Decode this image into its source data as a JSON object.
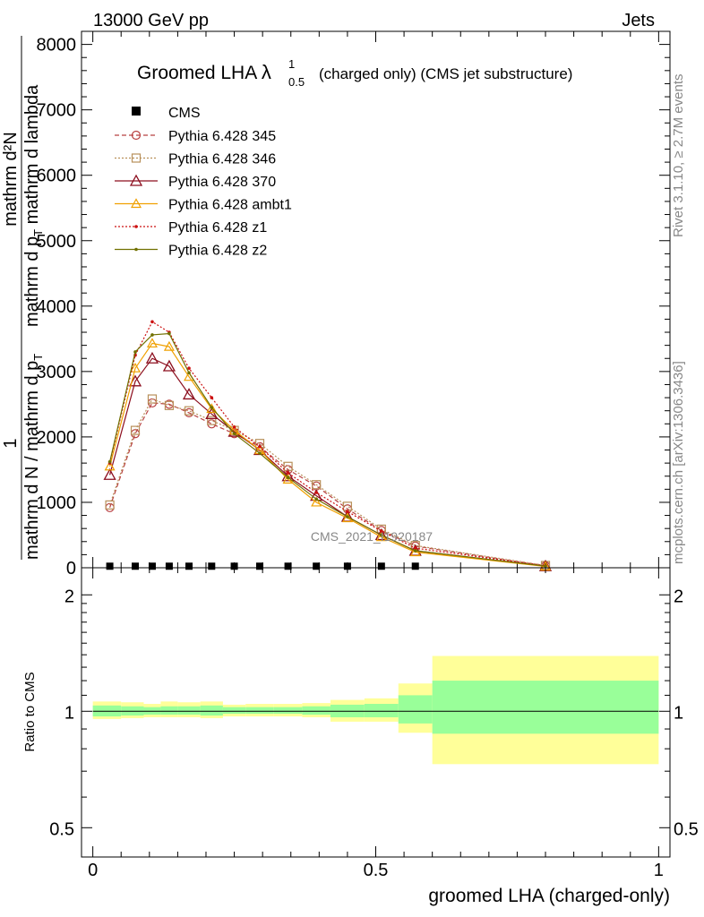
{
  "header": {
    "left": "13000 GeV pp",
    "right": "Jets"
  },
  "side": {
    "rivet": "Rivet 3.1.10, ≥ 2.7M events",
    "mcplots": "mcplots.cern.ch [arXiv:1306.3436]"
  },
  "watermark": "CMS_2021_I1920187",
  "colors": {
    "band_outer": "#ffff99",
    "band_inner": "#99ff99",
    "p345": "#b84040",
    "p346": "#b8905a",
    "p370": "#8c0e1e",
    "ambt1": "#f0a000",
    "z1": "#cc1010",
    "z2": "#707000"
  },
  "chart_data": {
    "type": "line",
    "title_main": "Groomed LHA",
    "title_sym": "λ",
    "title_sup": "1",
    "title_sub": "0.5",
    "title_suffix": "(charged only) (CMS jet substructure)",
    "ylabel_num": "mathrm d²N",
    "ylabel_den": "mathrm d p",
    "ylabel_den_sub": "T",
    "ylabel_den_suffix": " mathrm d lambda",
    "ylabel_pre_num": "1",
    "ylabel_pre_den": "mathrm d N / mathrm d p",
    "ylabel_pre_den_sub": "T",
    "xlabel": "groomed LHA (charged-only)",
    "ratio_ylabel": "Ratio to CMS",
    "xlim": [
      -0.02,
      1.02
    ],
    "ylim": [
      0,
      8200
    ],
    "yticks": [
      0,
      1000,
      2000,
      3000,
      4000,
      5000,
      6000,
      7000,
      8000
    ],
    "ytick_labels": [
      "0",
      "1000",
      "2000",
      "3000",
      "4000",
      "5000",
      "6000",
      "7000",
      "8000"
    ],
    "xticks": [
      0,
      0.5,
      1
    ],
    "xtick_labels": [
      "0",
      "0.5",
      "1"
    ],
    "ratio_ylim_log": [
      0.42,
      2.35
    ],
    "ratio_yticks": [
      0.5,
      1,
      2
    ],
    "ratio_ytick_labels": [
      "0.5",
      "1",
      "2"
    ],
    "x": [
      0.03,
      0.075,
      0.105,
      0.135,
      0.17,
      0.21,
      0.25,
      0.295,
      0.345,
      0.395,
      0.45,
      0.51,
      0.57,
      0.8
    ],
    "cms": [
      10,
      10,
      10,
      10,
      10,
      10,
      10,
      10,
      10,
      10,
      10,
      10,
      10,
      0
    ],
    "series": [
      {
        "name": "Pythia 6.428 345",
        "style": "dashed",
        "marker": "circle",
        "color": "#b84040",
        "values": [
          920,
          2050,
          2520,
          2500,
          2370,
          2200,
          2050,
          1850,
          1500,
          1250,
          900,
          570,
          330,
          30
        ]
      },
      {
        "name": "Pythia 6.428 346",
        "style": "dotted",
        "marker": "square",
        "color": "#b8905a",
        "values": [
          960,
          2100,
          2580,
          2480,
          2400,
          2250,
          2100,
          1900,
          1550,
          1270,
          940,
          590,
          340,
          35
        ]
      },
      {
        "name": "Pythia 6.428 370",
        "style": "solid",
        "marker": "triangle",
        "color": "#8c0e1e",
        "values": [
          1420,
          2850,
          3200,
          3080,
          2650,
          2350,
          2080,
          1800,
          1400,
          1100,
          780,
          500,
          260,
          25
        ]
      },
      {
        "name": "Pythia 6.428 ambt1",
        "style": "solid",
        "marker": "triangle-small",
        "color": "#f0a000",
        "values": [
          1550,
          3050,
          3430,
          3380,
          2920,
          2430,
          2100,
          1800,
          1350,
          1000,
          760,
          470,
          240,
          20
        ]
      },
      {
        "name": "Pythia 6.428 z1",
        "style": "dotted",
        "marker": "dot",
        "color": "#cc1010",
        "values": [
          1600,
          3250,
          3760,
          3600,
          3050,
          2600,
          2150,
          1850,
          1450,
          1150,
          860,
          560,
          300,
          30
        ]
      },
      {
        "name": "Pythia 6.428 z2",
        "style": "solid",
        "marker": "dot",
        "color": "#707000",
        "values": [
          1620,
          3300,
          3560,
          3580,
          2980,
          2450,
          2050,
          1750,
          1380,
          1050,
          780,
          500,
          260,
          25
        ]
      }
    ],
    "ratio_bins": [
      0,
      0.05,
      0.09,
      0.12,
      0.15,
      0.19,
      0.23,
      0.27,
      0.32,
      0.37,
      0.42,
      0.48,
      0.54,
      0.6,
      1.0
    ],
    "ratio_outer": [
      [
        0.955,
        1.06
      ],
      [
        0.96,
        1.055
      ],
      [
        0.965,
        1.045
      ],
      [
        0.965,
        1.06
      ],
      [
        0.965,
        1.055
      ],
      [
        0.96,
        1.06
      ],
      [
        0.97,
        1.04
      ],
      [
        0.97,
        1.045
      ],
      [
        0.97,
        1.045
      ],
      [
        0.965,
        1.05
      ],
      [
        0.94,
        1.07
      ],
      [
        0.94,
        1.08
      ],
      [
        0.88,
        1.18
      ],
      [
        0.73,
        1.39
      ]
    ],
    "ratio_inner": [
      [
        0.97,
        1.035
      ],
      [
        0.975,
        1.03
      ],
      [
        0.98,
        1.025
      ],
      [
        0.98,
        1.03
      ],
      [
        0.98,
        1.03
      ],
      [
        0.975,
        1.035
      ],
      [
        0.985,
        1.025
      ],
      [
        0.985,
        1.025
      ],
      [
        0.985,
        1.025
      ],
      [
        0.98,
        1.03
      ],
      [
        0.965,
        1.04
      ],
      [
        0.965,
        1.045
      ],
      [
        0.93,
        1.1
      ],
      [
        0.875,
        1.2
      ]
    ]
  }
}
